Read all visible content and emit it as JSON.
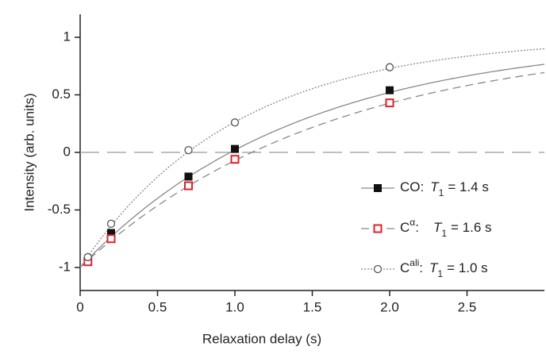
{
  "chart_data": {
    "type": "scatter",
    "x_label": "Relaxation delay (s)",
    "y_label": "Intensity (arb. units)",
    "x": [
      0.05,
      0.2,
      0.7,
      1.0,
      2.0
    ],
    "fit_symbol": "T",
    "fit_subscript": "1",
    "series": [
      {
        "name": "CO",
        "name_sup": "",
        "marker": "square-filled",
        "color": "#111111",
        "line_color": "#888888",
        "dash": "",
        "t1": {
          "value": 1.4,
          "label": "= 1.4 s"
        },
        "values": [
          -0.95,
          -0.7,
          -0.21,
          0.03,
          0.54
        ]
      },
      {
        "name": "C",
        "name_sup": "α",
        "marker": "square-open",
        "color": "#e0202a",
        "line_color": "#888888",
        "dash": "10 6",
        "t1": {
          "value": 1.6,
          "label": "= 1.6 s"
        },
        "values": [
          -0.95,
          -0.75,
          -0.29,
          -0.06,
          0.43
        ]
      },
      {
        "name": "C",
        "name_sup": "ali",
        "marker": "circle-open",
        "color": "#555555",
        "line_color": "#888888",
        "dash": "2 2",
        "t1": {
          "value": 1.0,
          "label": "= 1.0 s"
        },
        "values": [
          -0.91,
          -0.62,
          0.02,
          0.26,
          0.74
        ]
      }
    ],
    "xlim": [
      0,
      3
    ],
    "ylim": [
      -1.2,
      1.2
    ],
    "xticks": [
      0,
      0.5,
      {
        "value": 1,
        "label": "1.0"
      },
      1.5,
      {
        "value": 2,
        "label": "2.0"
      },
      2.5
    ],
    "yticks": [
      -1,
      -0.5,
      0,
      0.5,
      1
    ]
  }
}
